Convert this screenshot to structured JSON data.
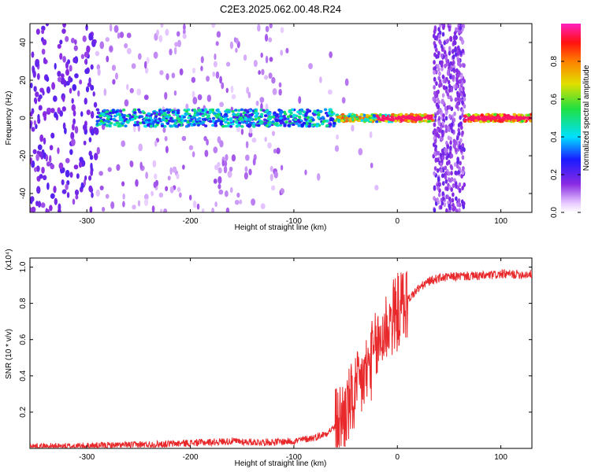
{
  "title": "C2E3.2025.062.00.48.R24",
  "colors": {
    "snr_line": "#e8282a",
    "background": "#ffffff",
    "axis": "#000000"
  },
  "chart_data": [
    {
      "type": "heatmap",
      "title": "C2E3.2025.062.00.48.R24",
      "xlabel": "Height of straight line (km)",
      "ylabel": "Frequency (Hz)",
      "xlim": [
        -355,
        130
      ],
      "ylim": [
        -50,
        50
      ],
      "xticks": [
        -300,
        -200,
        -100,
        0,
        100
      ],
      "yticks": [
        -40,
        -20,
        0,
        20,
        40
      ],
      "colorbar": {
        "label": "Normalized spectral amplitude",
        "range": [
          0.0,
          1.0
        ],
        "ticks": [
          0.0,
          0.2,
          0.4,
          0.6,
          0.8
        ],
        "colormap": "rainbow (white-purple-blue-cyan-green-yellow-red-magenta)"
      },
      "features": [
        {
          "name": "ridge",
          "x_range": [
            -290,
            130
          ],
          "center_freq_hz": 0,
          "peak_amplitude": 0.95
        },
        {
          "name": "noise-band",
          "x_range": [
            35,
            65
          ],
          "freq_range_hz": [
            -50,
            50
          ]
        }
      ]
    },
    {
      "type": "line",
      "title": "",
      "xlabel": "Height of straight line (km)",
      "ylabel": "SNR (10 * v/v)",
      "y_multiplier": "(x10⁴)",
      "xlim": [
        -355,
        130
      ],
      "ylim": [
        0,
        1.05
      ],
      "xticks": [
        -300,
        -200,
        -100,
        0,
        100
      ],
      "yticks": [
        0.2,
        0.4,
        0.6,
        0.8,
        1.0
      ],
      "series": [
        {
          "x": [
            -355,
            -320,
            -280,
            -250,
            -220,
            -200,
            -180,
            -160,
            -140,
            -120,
            -100,
            -90,
            -80,
            -70,
            -60,
            -50,
            -40,
            -30,
            -20,
            -10,
            0,
            10,
            20,
            30,
            40,
            60,
            80,
            100,
            120,
            130
          ],
          "y": [
            0.01,
            0.01,
            0.015,
            0.02,
            0.025,
            0.03,
            0.035,
            0.04,
            0.035,
            0.035,
            0.04,
            0.05,
            0.06,
            0.08,
            0.12,
            0.2,
            0.3,
            0.42,
            0.55,
            0.68,
            0.75,
            0.82,
            0.88,
            0.92,
            0.94,
            0.95,
            0.95,
            0.96,
            0.96,
            0.96
          ]
        }
      ]
    }
  ]
}
